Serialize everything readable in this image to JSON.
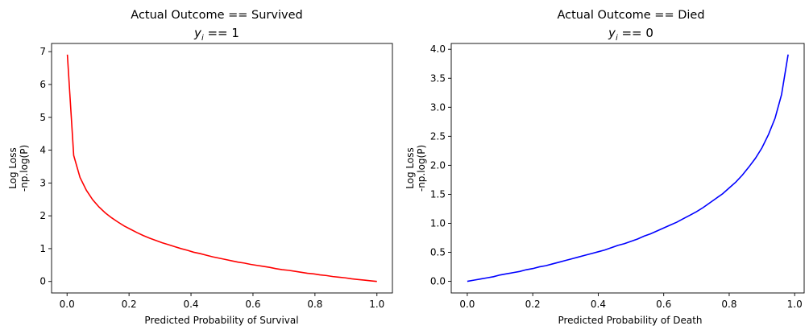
{
  "chart_data": [
    {
      "type": "line",
      "title": "Actual Outcome == Survived",
      "subtitle_var": "y",
      "subtitle_sub": "i",
      "subtitle_rest": " == 1",
      "xlabel": "Predicted Probability of Survival",
      "ylabel_line1": "Log Loss",
      "ylabel_line2": "-np.log(P)",
      "xlim": [
        -0.05,
        1.05
      ],
      "ylim": [
        -0.35,
        7.25
      ],
      "xticks": [
        0.0,
        0.2,
        0.4,
        0.6,
        0.8,
        1.0
      ],
      "xtick_labels": [
        "0.0",
        "0.2",
        "0.4",
        "0.6",
        "0.8",
        "1.0"
      ],
      "yticks": [
        0,
        1,
        2,
        3,
        4,
        5,
        6,
        7
      ],
      "ytick_labels": [
        "0",
        "1",
        "2",
        "3",
        "4",
        "5",
        "6",
        "7"
      ],
      "grid": false,
      "series": [
        {
          "color": "#ff0000",
          "x": [
            0.001,
            0.0214,
            0.0418,
            0.0622,
            0.0826,
            0.1029,
            0.1233,
            0.1437,
            0.1641,
            0.1845,
            0.2049,
            0.2253,
            0.2457,
            0.2661,
            0.2865,
            0.3069,
            0.3273,
            0.3477,
            0.3681,
            0.3885,
            0.4089,
            0.4292,
            0.4496,
            0.47,
            0.4904,
            0.5108,
            0.5312,
            0.5516,
            0.572,
            0.5924,
            0.6128,
            0.6332,
            0.6536,
            0.674,
            0.6944,
            0.7148,
            0.7351,
            0.7555,
            0.7759,
            0.7963,
            0.8167,
            0.8371,
            0.8575,
            0.8779,
            0.8983,
            0.9187,
            0.9391,
            0.9595,
            0.9799,
            1.0
          ],
          "y": [
            6.91,
            3.84,
            3.17,
            2.78,
            2.49,
            2.27,
            2.09,
            1.94,
            1.81,
            1.69,
            1.59,
            1.49,
            1.4,
            1.32,
            1.25,
            1.18,
            1.12,
            1.06,
            1.0,
            0.95,
            0.89,
            0.85,
            0.8,
            0.75,
            0.71,
            0.67,
            0.63,
            0.59,
            0.56,
            0.52,
            0.49,
            0.46,
            0.43,
            0.39,
            0.36,
            0.34,
            0.31,
            0.28,
            0.25,
            0.23,
            0.2,
            0.18,
            0.15,
            0.13,
            0.11,
            0.08,
            0.06,
            0.04,
            0.02,
            0.0
          ]
        }
      ]
    },
    {
      "type": "line",
      "title": "Actual Outcome == Died",
      "subtitle_var": "y",
      "subtitle_sub": "i",
      "subtitle_rest": " == 0",
      "xlabel": "Predicted Probability of Death",
      "ylabel_line1": "Log Loss",
      "ylabel_line2": "-np.log(P)",
      "xlim": [
        -0.049,
        1.029
      ],
      "ylim": [
        -0.2,
        4.1
      ],
      "xticks": [
        0.0,
        0.2,
        0.4,
        0.6,
        0.8,
        1.0
      ],
      "xtick_labels": [
        "0.0",
        "0.2",
        "0.4",
        "0.6",
        "0.8",
        "1.0"
      ],
      "yticks": [
        0.0,
        0.5,
        1.0,
        1.5,
        2.0,
        2.5,
        3.0,
        3.5,
        4.0
      ],
      "ytick_labels": [
        "0.0",
        "0.5",
        "1.0",
        "1.5",
        "2.0",
        "2.5",
        "3.0",
        "3.5",
        "4.0"
      ],
      "grid": false,
      "series": [
        {
          "color": "#0000ff",
          "x": [
            0.0,
            0.02,
            0.04,
            0.06,
            0.08,
            0.1,
            0.12,
            0.14,
            0.16,
            0.18,
            0.2,
            0.22,
            0.24,
            0.26,
            0.28,
            0.3,
            0.32,
            0.34,
            0.36,
            0.38,
            0.4,
            0.42,
            0.44,
            0.46,
            0.48,
            0.5,
            0.52,
            0.54,
            0.56,
            0.58,
            0.6,
            0.62,
            0.64,
            0.66,
            0.68,
            0.7,
            0.72,
            0.74,
            0.76,
            0.78,
            0.8,
            0.82,
            0.84,
            0.86,
            0.88,
            0.9,
            0.92,
            0.94,
            0.96,
            0.98
          ],
          "y": [
            0.0,
            0.02,
            0.04,
            0.06,
            0.08,
            0.11,
            0.13,
            0.15,
            0.17,
            0.2,
            0.22,
            0.25,
            0.27,
            0.3,
            0.33,
            0.36,
            0.39,
            0.42,
            0.45,
            0.48,
            0.51,
            0.54,
            0.58,
            0.62,
            0.65,
            0.69,
            0.73,
            0.78,
            0.82,
            0.87,
            0.92,
            0.97,
            1.02,
            1.08,
            1.14,
            1.2,
            1.27,
            1.35,
            1.43,
            1.51,
            1.61,
            1.71,
            1.83,
            1.97,
            2.12,
            2.3,
            2.53,
            2.81,
            3.22,
            3.91
          ]
        }
      ]
    }
  ]
}
